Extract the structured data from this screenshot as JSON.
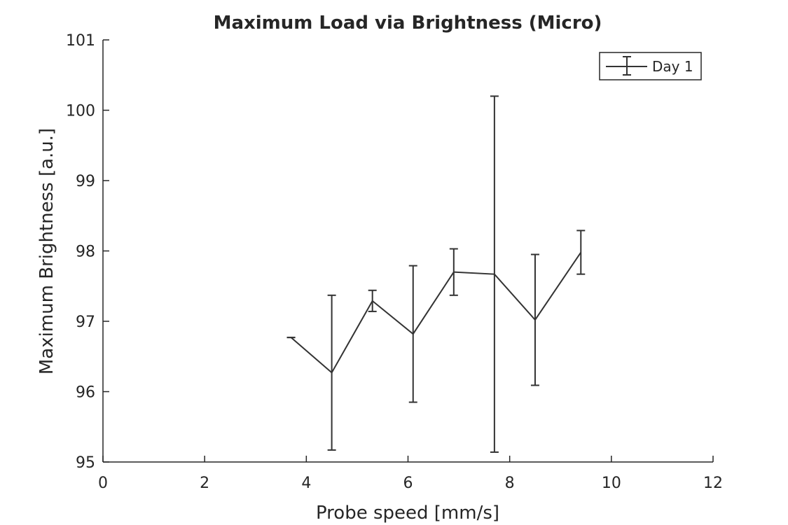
{
  "chart_data": {
    "type": "line",
    "title": "Maximum Load via Brightness (Micro)",
    "xlabel": "Probe speed [mm/s]",
    "ylabel": "Maximum Brightness [a.u.]",
    "xlim": [
      0,
      12
    ],
    "ylim": [
      95,
      101
    ],
    "xticks": [
      0,
      2,
      4,
      6,
      8,
      10,
      12
    ],
    "yticks": [
      95,
      96,
      97,
      98,
      99,
      100,
      101
    ],
    "grid": false,
    "legend_position": "top-right",
    "series": [
      {
        "name": "Day 1",
        "color": "#333333",
        "x": [
          3.7,
          4.5,
          5.3,
          6.1,
          6.9,
          7.7,
          8.5,
          9.4
        ],
        "y": [
          96.77,
          96.27,
          97.29,
          96.82,
          97.7,
          97.67,
          97.02,
          97.98
        ],
        "error": [
          0.0,
          1.1,
          0.15,
          0.97,
          0.33,
          2.53,
          0.93,
          0.31
        ]
      }
    ]
  }
}
